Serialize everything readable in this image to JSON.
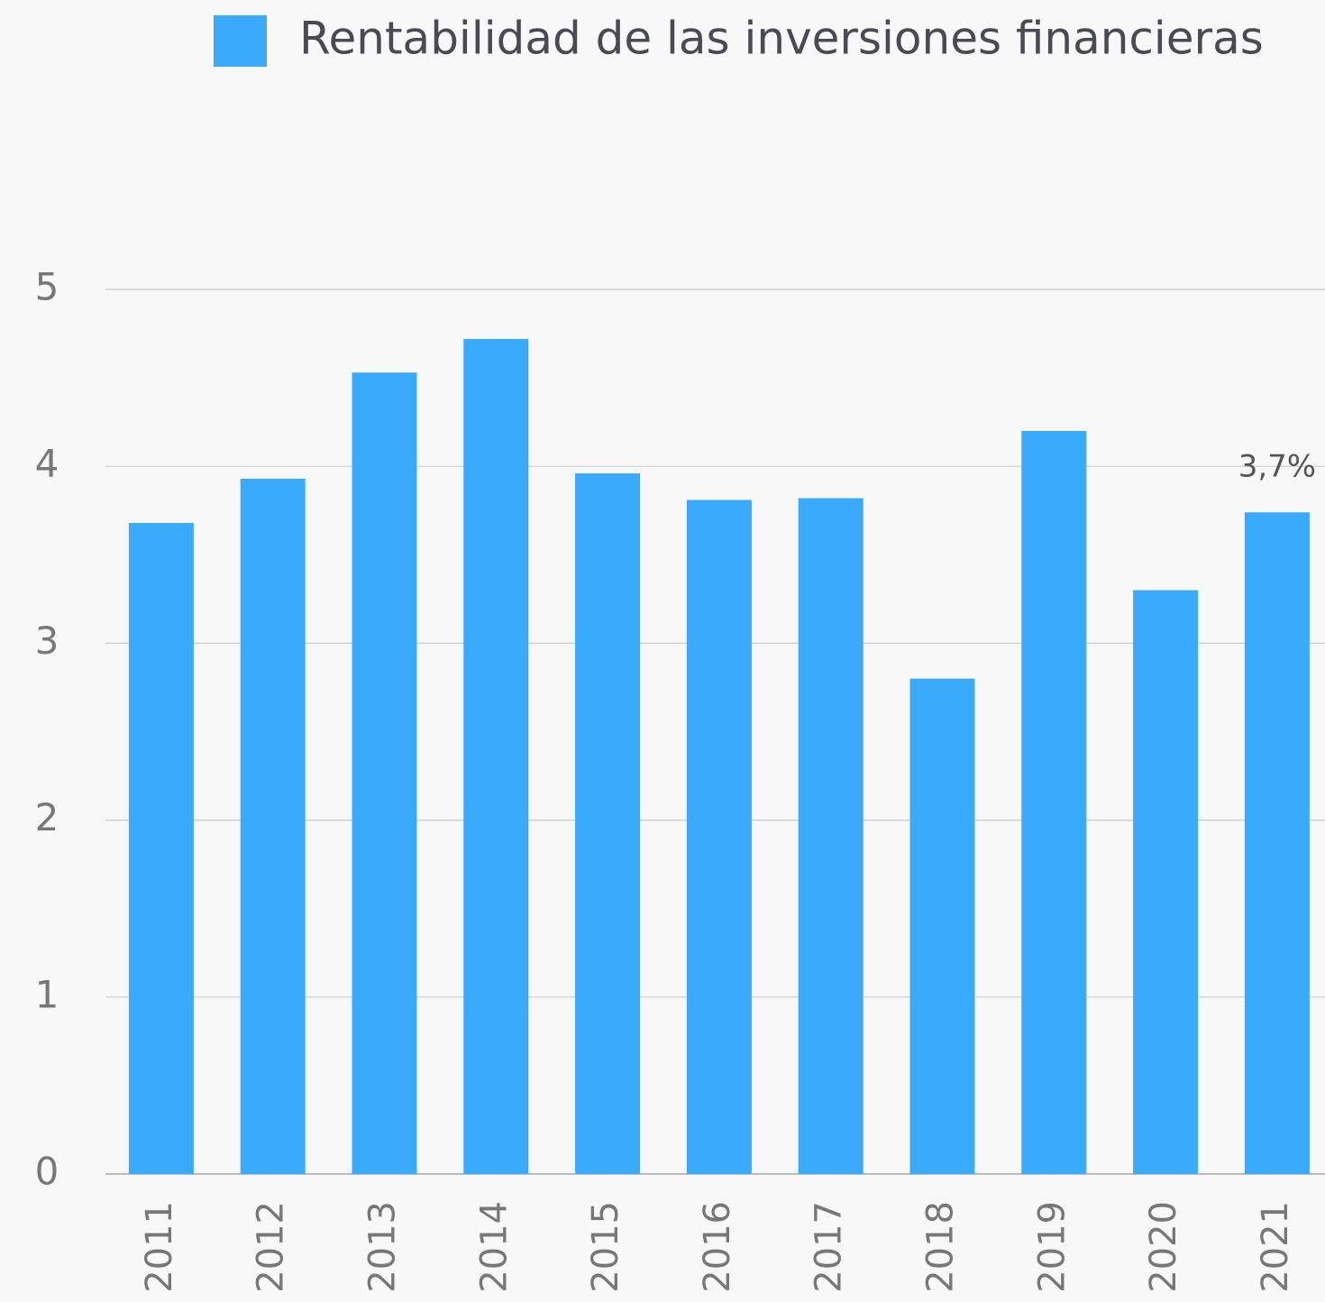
{
  "chart_data": {
    "type": "bar",
    "categories": [
      "2011",
      "2012",
      "2013",
      "2014",
      "2015",
      "2016",
      "2017",
      "2018",
      "2019",
      "2020",
      "2021"
    ],
    "series": [
      {
        "name": "Rentabilidad de las inversiones financieras",
        "color": "#3aabfc",
        "values": [
          3.68,
          3.93,
          4.53,
          4.72,
          3.96,
          3.81,
          3.82,
          2.8,
          4.2,
          3.3,
          3.74
        ],
        "value_labels": [
          null,
          null,
          null,
          null,
          null,
          null,
          null,
          null,
          null,
          null,
          "3,7%"
        ]
      }
    ],
    "ylim": [
      0,
      5
    ],
    "yticks": [
      0,
      1,
      2,
      3,
      4,
      5
    ],
    "grid": true,
    "legend": "top"
  }
}
